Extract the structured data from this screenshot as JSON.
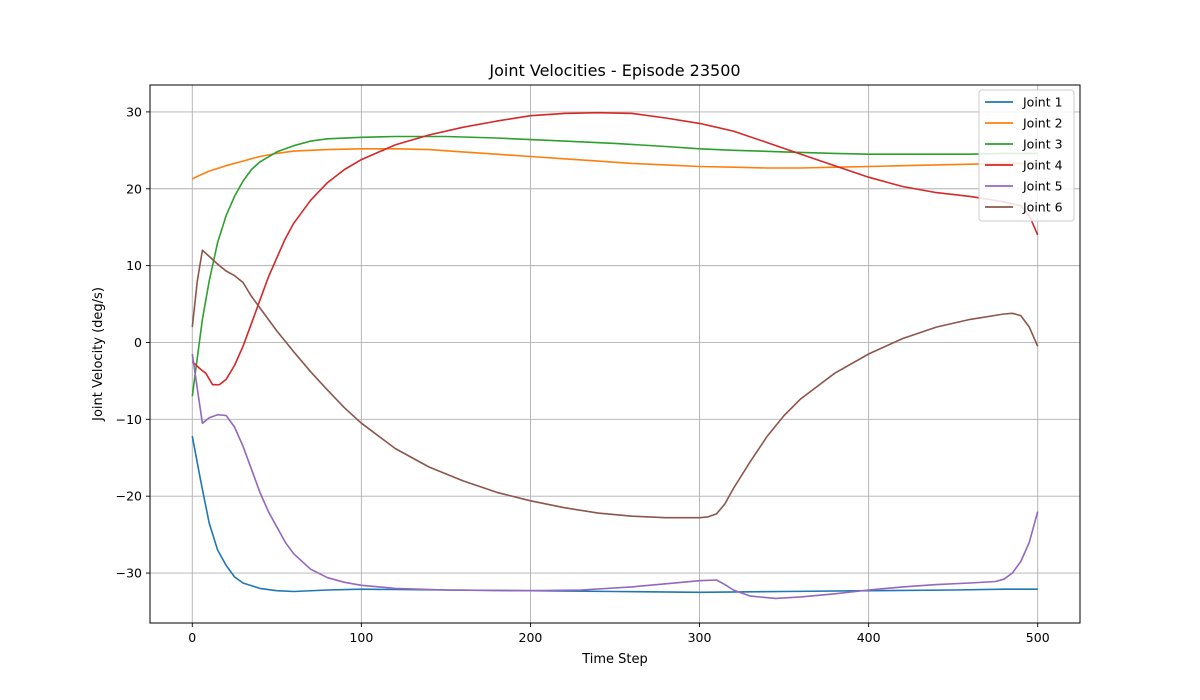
{
  "chart_data": {
    "type": "line",
    "title": "Joint Velocities - Episode 23500",
    "xlabel": "Time Step",
    "ylabel": "Joint Velocity (deg/s)",
    "xlim": [
      -25,
      525
    ],
    "ylim": [
      -36.5,
      33.5
    ],
    "xticks": [
      0,
      100,
      200,
      300,
      400,
      500
    ],
    "xtick_labels": [
      "0",
      "100",
      "200",
      "300",
      "400",
      "500"
    ],
    "yticks": [
      -30,
      -20,
      -10,
      0,
      10,
      20,
      30
    ],
    "ytick_labels": [
      "−30",
      "−20",
      "−10",
      "0",
      "10",
      "20",
      "30"
    ],
    "grid": true,
    "legend_position": "top-right",
    "series": [
      {
        "name": "Joint 1",
        "color": "#1f77b4",
        "points": [
          [
            0,
            -12.2
          ],
          [
            5,
            -18
          ],
          [
            10,
            -23.5
          ],
          [
            15,
            -27
          ],
          [
            20,
            -29
          ],
          [
            25,
            -30.5
          ],
          [
            30,
            -31.3
          ],
          [
            40,
            -32
          ],
          [
            50,
            -32.3
          ],
          [
            60,
            -32.4
          ],
          [
            80,
            -32.2
          ],
          [
            100,
            -32.1
          ],
          [
            150,
            -32.2
          ],
          [
            200,
            -32.3
          ],
          [
            250,
            -32.4
          ],
          [
            300,
            -32.5
          ],
          [
            350,
            -32.4
          ],
          [
            400,
            -32.3
          ],
          [
            450,
            -32.2
          ],
          [
            480,
            -32.1
          ],
          [
            500,
            -32.1
          ]
        ]
      },
      {
        "name": "Joint 2",
        "color": "#ff7f0e",
        "points": [
          [
            0,
            21.3
          ],
          [
            5,
            21.8
          ],
          [
            10,
            22.3
          ],
          [
            20,
            23
          ],
          [
            30,
            23.6
          ],
          [
            40,
            24.2
          ],
          [
            50,
            24.6
          ],
          [
            60,
            24.9
          ],
          [
            80,
            25.1
          ],
          [
            100,
            25.2
          ],
          [
            120,
            25.2
          ],
          [
            140,
            25.1
          ],
          [
            160,
            24.8
          ],
          [
            180,
            24.5
          ],
          [
            200,
            24.2
          ],
          [
            220,
            23.9
          ],
          [
            240,
            23.6
          ],
          [
            260,
            23.3
          ],
          [
            280,
            23.1
          ],
          [
            300,
            22.9
          ],
          [
            320,
            22.8
          ],
          [
            340,
            22.7
          ],
          [
            360,
            22.7
          ],
          [
            380,
            22.8
          ],
          [
            400,
            22.9
          ],
          [
            420,
            23.0
          ],
          [
            440,
            23.1
          ],
          [
            460,
            23.2
          ],
          [
            480,
            23.3
          ],
          [
            500,
            23.3
          ]
        ]
      },
      {
        "name": "Joint 3",
        "color": "#2ca02c",
        "points": [
          [
            0,
            -7
          ],
          [
            3,
            -2
          ],
          [
            6,
            3
          ],
          [
            10,
            8
          ],
          [
            15,
            13
          ],
          [
            20,
            16.5
          ],
          [
            25,
            19
          ],
          [
            30,
            21
          ],
          [
            35,
            22.5
          ],
          [
            40,
            23.5
          ],
          [
            50,
            24.8
          ],
          [
            60,
            25.6
          ],
          [
            70,
            26.2
          ],
          [
            80,
            26.5
          ],
          [
            100,
            26.7
          ],
          [
            120,
            26.8
          ],
          [
            150,
            26.8
          ],
          [
            180,
            26.6
          ],
          [
            200,
            26.4
          ],
          [
            220,
            26.2
          ],
          [
            250,
            25.9
          ],
          [
            280,
            25.5
          ],
          [
            300,
            25.2
          ],
          [
            320,
            25
          ],
          [
            350,
            24.8
          ],
          [
            380,
            24.6
          ],
          [
            400,
            24.5
          ],
          [
            430,
            24.5
          ],
          [
            460,
            24.5
          ],
          [
            480,
            24.6
          ],
          [
            500,
            24.6
          ]
        ]
      },
      {
        "name": "Joint 4",
        "color": "#d62728",
        "points": [
          [
            0,
            -2.5
          ],
          [
            5,
            -3.5
          ],
          [
            8,
            -4
          ],
          [
            12,
            -5.5
          ],
          [
            16,
            -5.5
          ],
          [
            20,
            -4.8
          ],
          [
            25,
            -3
          ],
          [
            30,
            -0.5
          ],
          [
            35,
            2.5
          ],
          [
            40,
            5.5
          ],
          [
            45,
            8.5
          ],
          [
            50,
            11
          ],
          [
            55,
            13.5
          ],
          [
            60,
            15.5
          ],
          [
            70,
            18.5
          ],
          [
            80,
            20.8
          ],
          [
            90,
            22.5
          ],
          [
            100,
            23.8
          ],
          [
            120,
            25.7
          ],
          [
            140,
            27
          ],
          [
            160,
            28
          ],
          [
            180,
            28.8
          ],
          [
            200,
            29.5
          ],
          [
            220,
            29.8
          ],
          [
            240,
            29.9
          ],
          [
            260,
            29.8
          ],
          [
            280,
            29.2
          ],
          [
            300,
            28.5
          ],
          [
            320,
            27.5
          ],
          [
            340,
            26
          ],
          [
            360,
            24.5
          ],
          [
            380,
            23
          ],
          [
            400,
            21.5
          ],
          [
            420,
            20.3
          ],
          [
            440,
            19.5
          ],
          [
            460,
            19
          ],
          [
            480,
            18.3
          ],
          [
            490,
            17.8
          ],
          [
            495,
            16.5
          ],
          [
            500,
            14
          ]
        ]
      },
      {
        "name": "Joint 5",
        "color": "#9467bd",
        "points": [
          [
            0,
            -1.5
          ],
          [
            3,
            -6
          ],
          [
            6,
            -10.5
          ],
          [
            10,
            -9.8
          ],
          [
            15,
            -9.4
          ],
          [
            20,
            -9.5
          ],
          [
            25,
            -11
          ],
          [
            30,
            -13.5
          ],
          [
            35,
            -16.5
          ],
          [
            40,
            -19.5
          ],
          [
            45,
            -22
          ],
          [
            50,
            -24
          ],
          [
            55,
            -26
          ],
          [
            60,
            -27.5
          ],
          [
            70,
            -29.5
          ],
          [
            80,
            -30.6
          ],
          [
            90,
            -31.2
          ],
          [
            100,
            -31.6
          ],
          [
            120,
            -32
          ],
          [
            150,
            -32.2
          ],
          [
            200,
            -32.3
          ],
          [
            230,
            -32.2
          ],
          [
            260,
            -31.8
          ],
          [
            280,
            -31.4
          ],
          [
            300,
            -31
          ],
          [
            310,
            -30.9
          ],
          [
            315,
            -31.5
          ],
          [
            320,
            -32.2
          ],
          [
            330,
            -33
          ],
          [
            345,
            -33.3
          ],
          [
            360,
            -33.1
          ],
          [
            380,
            -32.7
          ],
          [
            400,
            -32.2
          ],
          [
            420,
            -31.8
          ],
          [
            440,
            -31.5
          ],
          [
            460,
            -31.3
          ],
          [
            475,
            -31.1
          ],
          [
            480,
            -30.8
          ],
          [
            485,
            -30
          ],
          [
            490,
            -28.5
          ],
          [
            495,
            -26
          ],
          [
            500,
            -22
          ]
        ]
      },
      {
        "name": "Joint 6",
        "color": "#8c564b",
        "points": [
          [
            0,
            2
          ],
          [
            3,
            8
          ],
          [
            6,
            12
          ],
          [
            10,
            11.2
          ],
          [
            15,
            10.2
          ],
          [
            20,
            9.3
          ],
          [
            25,
            8.7
          ],
          [
            30,
            7.8
          ],
          [
            35,
            6
          ],
          [
            40,
            4.5
          ],
          [
            50,
            1.5
          ],
          [
            60,
            -1.2
          ],
          [
            70,
            -3.8
          ],
          [
            80,
            -6.2
          ],
          [
            90,
            -8.5
          ],
          [
            100,
            -10.5
          ],
          [
            120,
            -13.8
          ],
          [
            140,
            -16.2
          ],
          [
            160,
            -18
          ],
          [
            180,
            -19.5
          ],
          [
            200,
            -20.6
          ],
          [
            220,
            -21.5
          ],
          [
            240,
            -22.2
          ],
          [
            260,
            -22.6
          ],
          [
            280,
            -22.8
          ],
          [
            300,
            -22.8
          ],
          [
            305,
            -22.7
          ],
          [
            310,
            -22.3
          ],
          [
            315,
            -21
          ],
          [
            320,
            -19
          ],
          [
            330,
            -15.5
          ],
          [
            340,
            -12.2
          ],
          [
            350,
            -9.5
          ],
          [
            360,
            -7.3
          ],
          [
            380,
            -4
          ],
          [
            400,
            -1.5
          ],
          [
            420,
            0.5
          ],
          [
            440,
            2
          ],
          [
            460,
            3
          ],
          [
            480,
            3.7
          ],
          [
            485,
            3.8
          ],
          [
            490,
            3.5
          ],
          [
            495,
            2
          ],
          [
            500,
            -0.5
          ]
        ]
      }
    ]
  }
}
